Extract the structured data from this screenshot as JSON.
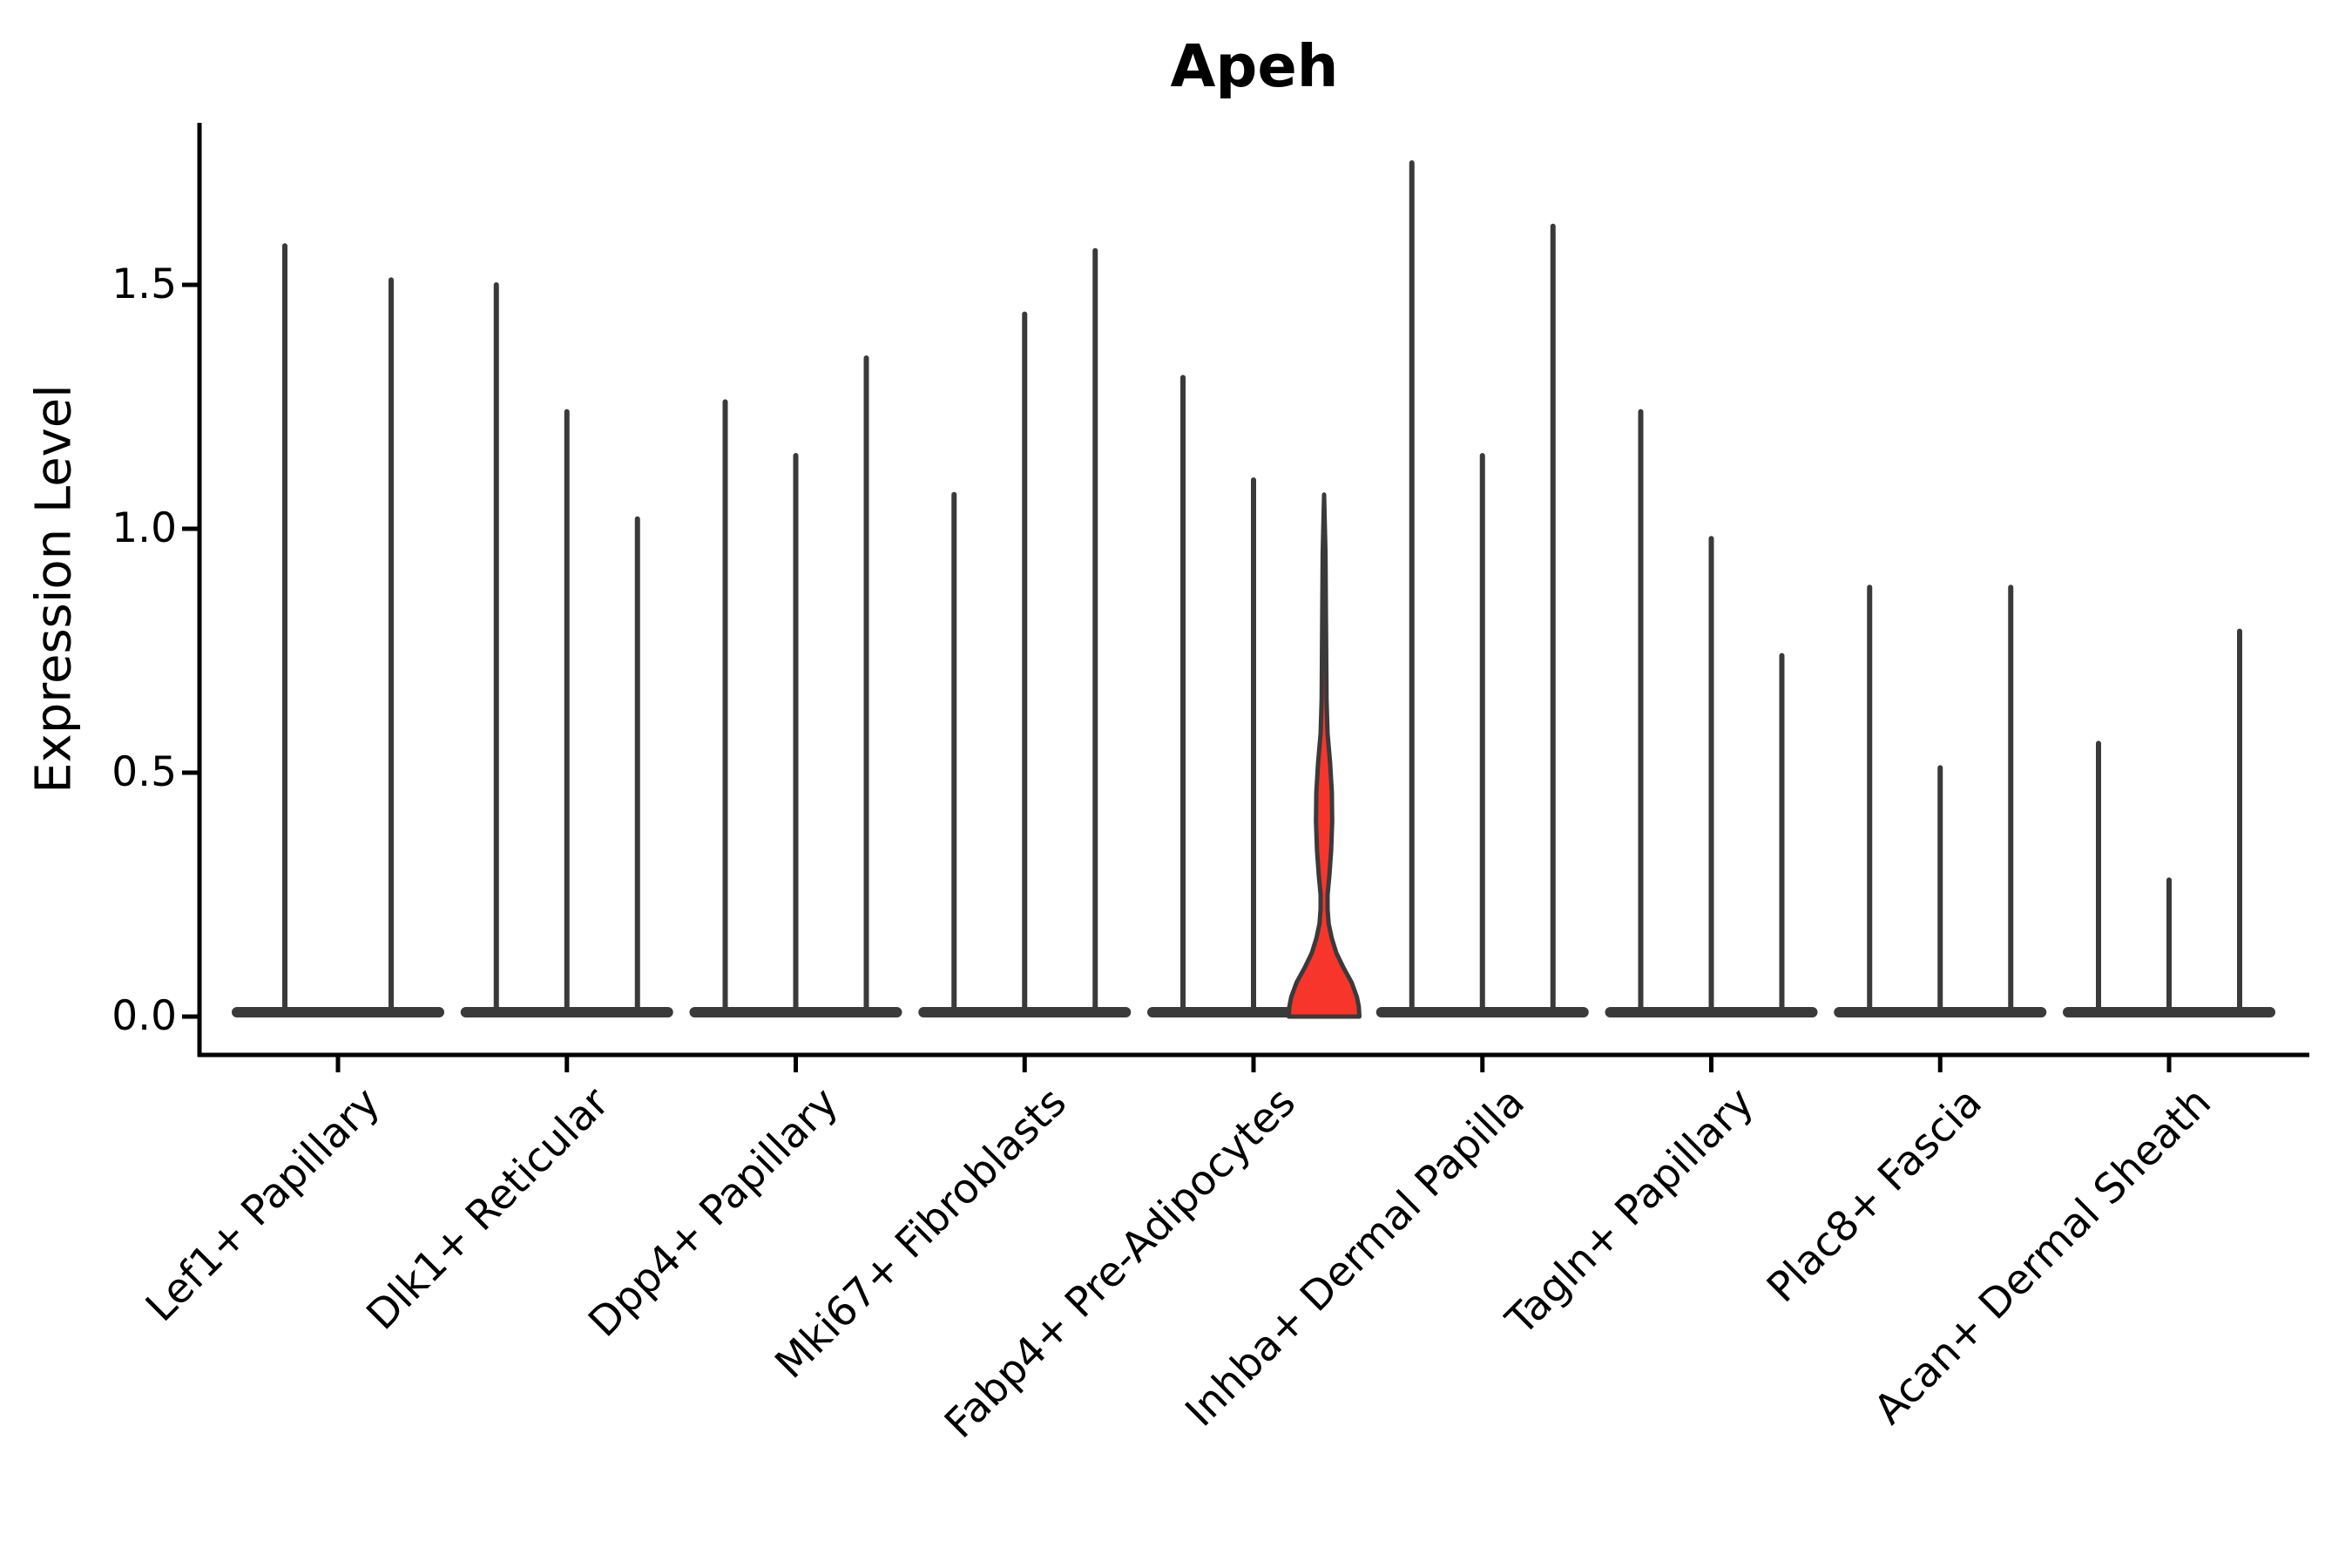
{
  "title": "Apeh",
  "y_axis": {
    "label": "Expression Level",
    "ticks": [
      {
        "label": "0.0",
        "value": 0.0
      },
      {
        "label": "0.5",
        "value": 0.5
      },
      {
        "label": "1.0",
        "value": 1.0
      },
      {
        "label": "1.5",
        "value": 1.5
      }
    ]
  },
  "colors": {
    "highlight_fill": "#F8352B",
    "violin_stroke": "#3A3A3A",
    "axis_color": "#000000"
  },
  "chart_data": {
    "type": "violin",
    "title": "Apeh",
    "ylabel": "Expression Level",
    "ylim": [
      -0.12,
      1.82
    ],
    "yticks": [
      0.0,
      0.5,
      1.0,
      1.5
    ],
    "grid": false,
    "legend": "none",
    "categories": [
      "Lef1+ Papillary",
      "Dlk1+ Reticular",
      "Dpp4+ Papillary",
      "Mki67+ Fibroblasts",
      "Fabp4+ Pre-Adipocytes",
      "Inhba+ Dermal Papilla",
      "Tagln+ Papillary",
      "Plac8+ Fascia",
      "Acan+ Dermal Sheath"
    ],
    "groups": [
      {
        "label": "Lef1+ Papillary",
        "violins": [
          {
            "max": 1.58
          },
          {
            "max": 1.51
          }
        ]
      },
      {
        "label": "Dlk1+ Reticular",
        "violins": [
          {
            "max": 1.5
          },
          {
            "max": 1.24
          },
          {
            "max": 1.02
          }
        ]
      },
      {
        "label": "Dpp4+ Papillary",
        "violins": [
          {
            "max": 1.26
          },
          {
            "max": 1.15
          },
          {
            "max": 1.35
          }
        ]
      },
      {
        "label": "Mki67+ Fibroblasts",
        "violins": [
          {
            "max": 1.07
          },
          {
            "max": 1.44
          },
          {
            "max": 1.57
          }
        ]
      },
      {
        "label": "Fabp4+ Pre-Adipocytes",
        "violins": [
          {
            "max": 1.31
          },
          {
            "max": 1.1
          },
          {
            "max": 1.07,
            "highlighted": true
          }
        ]
      },
      {
        "label": "Inhba+ Dermal Papilla",
        "violins": [
          {
            "max": 1.75
          },
          {
            "max": 1.15
          },
          {
            "max": 1.62
          }
        ]
      },
      {
        "label": "Tagln+ Papillary",
        "violins": [
          {
            "max": 1.24
          },
          {
            "max": 0.98
          },
          {
            "max": 0.74
          }
        ]
      },
      {
        "label": "Plac8+ Fascia",
        "violins": [
          {
            "max": 0.88
          },
          {
            "max": 0.51
          },
          {
            "max": 0.88
          }
        ]
      },
      {
        "label": "Acan+ Dermal Sheath",
        "violins": [
          {
            "max": 0.56
          },
          {
            "max": 0.28
          },
          {
            "max": 0.79
          }
        ]
      }
    ],
    "highlighted_violin": {
      "group": "Fabp4+ Pre-Adipocytes",
      "position_in_group": 3,
      "max": 1.07,
      "density_profile": [
        [
          1.07,
          0.0
        ],
        [
          0.95,
          0.04
        ],
        [
          0.8,
          0.055
        ],
        [
          0.65,
          0.07
        ],
        [
          0.58,
          0.1
        ],
        [
          0.52,
          0.17
        ],
        [
          0.46,
          0.22
        ],
        [
          0.4,
          0.23
        ],
        [
          0.34,
          0.2
        ],
        [
          0.29,
          0.15
        ],
        [
          0.25,
          0.1
        ],
        [
          0.22,
          0.1
        ],
        [
          0.19,
          0.13
        ],
        [
          0.16,
          0.22
        ],
        [
          0.13,
          0.35
        ],
        [
          0.1,
          0.55
        ],
        [
          0.07,
          0.78
        ],
        [
          0.04,
          0.93
        ],
        [
          0.02,
          0.985
        ],
        [
          0.0,
          1.0
        ]
      ]
    }
  }
}
